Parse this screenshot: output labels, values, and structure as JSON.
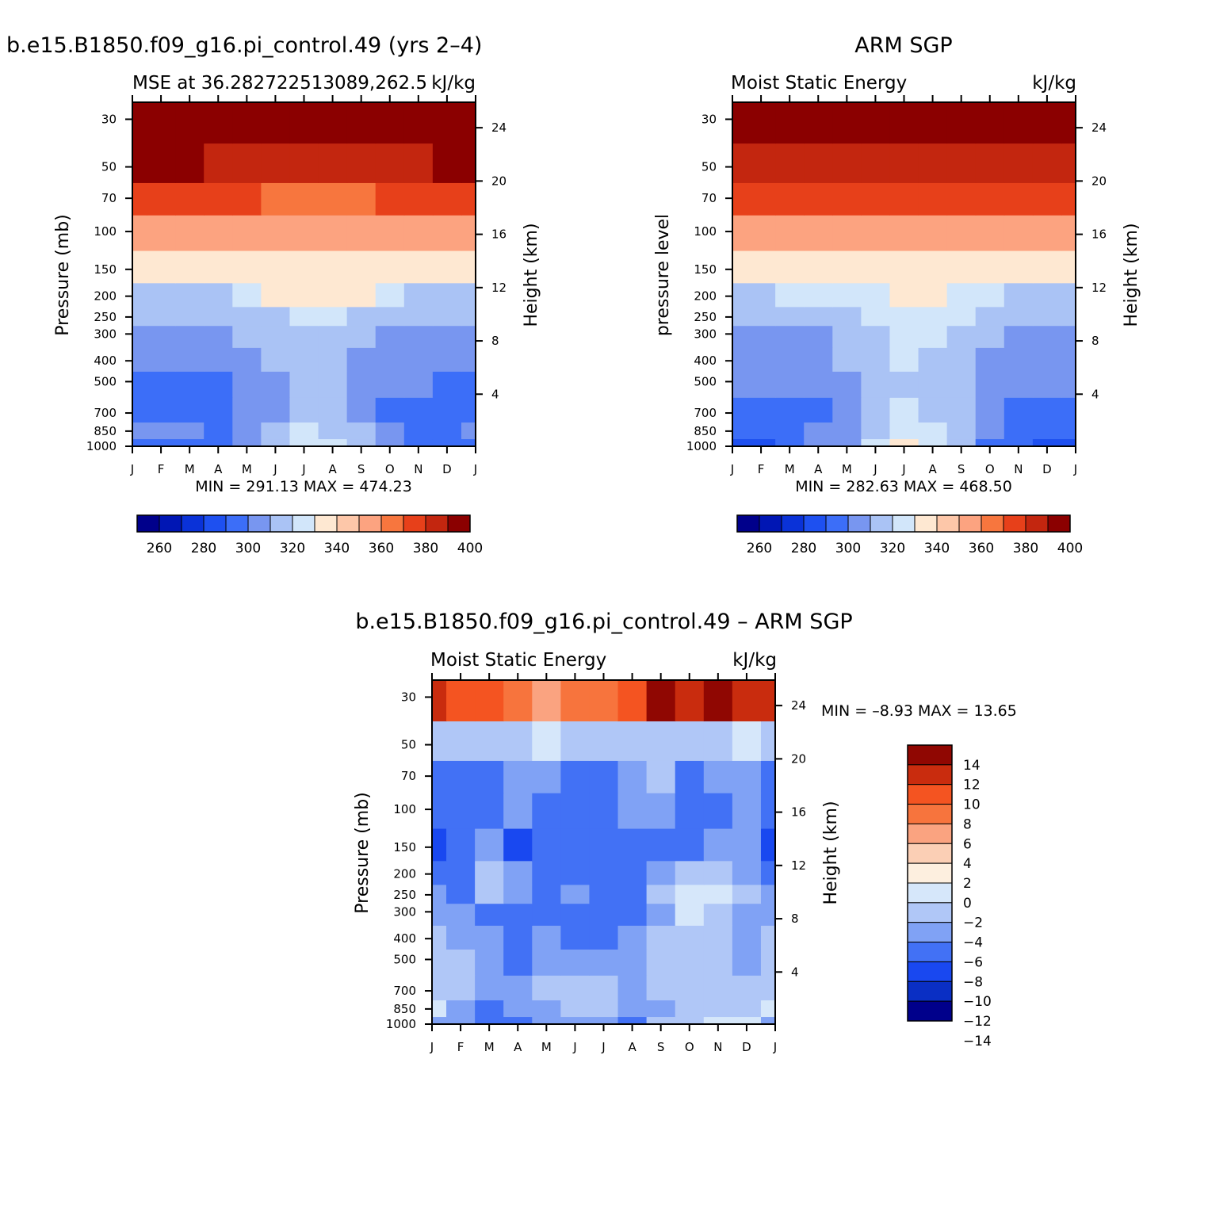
{
  "months": [
    "J",
    "F",
    "M",
    "A",
    "M",
    "J",
    "J",
    "A",
    "S",
    "O",
    "N",
    "D",
    "J"
  ],
  "pressure_ticks": [
    "30",
    "50",
    "70",
    "100",
    "150",
    "200",
    "250",
    "300",
    "400",
    "500",
    "700",
    "850",
    "1000"
  ],
  "height_ticks": [
    "24",
    "20",
    "16",
    "12",
    "8",
    "4"
  ],
  "colors": {
    "mse_scale": [
      "#00008b",
      "#0016b4",
      "#0a32d8",
      "#1e50f0",
      "#3c6ef8",
      "#7896f0",
      "#aac3f5",
      "#d2e6fa",
      "#fee8d2",
      "#fdc7a9",
      "#fca380",
      "#f7763e",
      "#e7401a",
      "#c3260f",
      "#8b0000"
    ],
    "diff_scale": [
      "#00008b",
      "#0a2fc4",
      "#1948f0",
      "#4271f5",
      "#80a2f5",
      "#b0c7f7",
      "#d6e7fa",
      "#fdefdf",
      "#fbcfb5",
      "#faa380",
      "#f7743d",
      "#f45421",
      "#c92c0e",
      "#900702"
    ]
  },
  "panels": {
    "model": {
      "title": "b.e15.B1850.f09_g16.pi_control.49 (yrs 2–4)",
      "left_label": "MSE at 36.282722513089,262.5",
      "right_label": "kJ/kg",
      "ylabel": "Pressure (mb)",
      "y2label": "Height (km)",
      "stats": "MIN = 291.13 MAX = 474.23",
      "colorbar_labels": [
        "260",
        "280",
        "300",
        "320",
        "340",
        "360",
        "380",
        "400"
      ]
    },
    "obs": {
      "title": "ARM SGP",
      "left_label": "Moist Static Energy",
      "right_label": "kJ/kg",
      "ylabel": "pressure level",
      "y2label": "Height (km)",
      "stats": "MIN = 282.63 MAX = 468.50",
      "colorbar_labels": [
        "260",
        "280",
        "300",
        "320",
        "340",
        "360",
        "380",
        "400"
      ]
    },
    "diff": {
      "title": "b.e15.B1850.f09_g16.pi_control.49 – ARM SGP",
      "left_label": "Moist Static Energy",
      "right_label": "kJ/kg",
      "ylabel": "Pressure (mb)",
      "y2label": "Height (km)",
      "stats": "MIN =   –8.93 MAX =   13.65",
      "colorbar_labels": [
        "14",
        "12",
        "10",
        "8",
        "6",
        "4",
        "2",
        "0",
        "−2",
        "−4",
        "−6",
        "−8",
        "−10",
        "−12",
        "−14"
      ]
    }
  },
  "chart_data": [
    {
      "type": "heatmap",
      "title": "b.e15.B1850.f09_g16.pi_control.49 (yrs 2–4)",
      "variable": "MSE at 36.282722513089,262.5",
      "units": "kJ/kg",
      "xlabel": "",
      "ylabel": "Pressure (mb)",
      "y2label": "Height (km)",
      "x": [
        "J",
        "F",
        "M",
        "A",
        "M",
        "J",
        "J",
        "A",
        "S",
        "O",
        "N",
        "D",
        "J"
      ],
      "pressure": [
        1000,
        850,
        700,
        500,
        400,
        300,
        250,
        200,
        150,
        100,
        70,
        50,
        30
      ],
      "levels": [
        260,
        270,
        280,
        290,
        300,
        310,
        320,
        330,
        340,
        350,
        360,
        370,
        380,
        390,
        400
      ],
      "z": [
        [
          307,
          309,
          306,
          302,
          312,
          326,
          333,
          331,
          324,
          312,
          301,
          303,
          307
        ],
        [
          311,
          313,
          310,
          306,
          314,
          323,
          331,
          329,
          321,
          313,
          305,
          307,
          311
        ],
        [
          304,
          305,
          303,
          305,
          311,
          318,
          321,
          320,
          316,
          309,
          303,
          303,
          304
        ],
        [
          308,
          308,
          307,
          309,
          313,
          318,
          320,
          320,
          317,
          313,
          310,
          308,
          308
        ],
        [
          313,
          313,
          313,
          314,
          316,
          320,
          321,
          321,
          319,
          315,
          314,
          313,
          313
        ],
        [
          318,
          318,
          318,
          318,
          320,
          323,
          324,
          324,
          322,
          319,
          318,
          318,
          318
        ],
        [
          322,
          322,
          322,
          322,
          324,
          328,
          331,
          331,
          328,
          322,
          322,
          322,
          322
        ],
        [
          326,
          326,
          326,
          326,
          332,
          340,
          342,
          342,
          340,
          332,
          326,
          326,
          326
        ],
        [
          342,
          342,
          342,
          342,
          344,
          346,
          347,
          347,
          346,
          345,
          344,
          342,
          342
        ],
        [
          362,
          362,
          362,
          362,
          361,
          360,
          360,
          361,
          362,
          364,
          363,
          362,
          362
        ],
        [
          382,
          382,
          382,
          381,
          380,
          379,
          379,
          379,
          378,
          383,
          383,
          383,
          382
        ],
        [
          400,
          400,
          400,
          399,
          398,
          397,
          396,
          396,
          396,
          398,
          399,
          400,
          400
        ],
        [
          474,
          474,
          474,
          474,
          474,
          474,
          474,
          474,
          474,
          474,
          474,
          474,
          474
        ]
      ],
      "min": 291.13,
      "max": 474.23
    },
    {
      "type": "heatmap",
      "title": "ARM SGP",
      "variable": "Moist Static Energy",
      "units": "kJ/kg",
      "xlabel": "",
      "ylabel": "pressure level",
      "y2label": "Height (km)",
      "x": [
        "J",
        "F",
        "M",
        "A",
        "M",
        "J",
        "J",
        "A",
        "S",
        "O",
        "N",
        "D",
        "J"
      ],
      "pressure": [
        1000,
        850,
        700,
        500,
        400,
        300,
        250,
        200,
        150,
        100,
        70,
        50,
        30
      ],
      "levels": [
        260,
        270,
        280,
        290,
        300,
        310,
        320,
        330,
        340,
        350,
        360,
        370,
        380,
        390,
        400
      ],
      "z": [
        [
          298,
          299,
          304,
          310,
          318,
          332,
          342,
          337,
          323,
          309,
          301,
          298,
          298
        ],
        [
          302,
          303,
          306,
          310,
          317,
          328,
          336,
          332,
          322,
          311,
          305,
          302,
          302
        ],
        [
          305,
          306,
          307,
          309,
          315,
          325,
          331,
          328,
          320,
          310,
          306,
          305,
          305
        ],
        [
          310,
          311,
          311,
          312,
          317,
          325,
          328,
          327,
          322,
          314,
          311,
          310,
          310
        ],
        [
          315,
          315,
          316,
          317,
          320,
          327,
          330,
          329,
          325,
          318,
          315,
          315,
          315
        ],
        [
          318,
          318,
          318,
          319,
          323,
          329,
          332,
          331,
          328,
          321,
          318,
          318,
          318
        ],
        [
          322,
          322,
          323,
          324,
          327,
          333,
          336,
          335,
          332,
          325,
          322,
          322,
          322
        ],
        [
          327,
          328,
          330,
          331,
          333,
          337,
          341,
          341,
          337,
          332,
          329,
          327,
          327
        ],
        [
          344,
          344,
          344,
          345,
          346,
          348,
          349,
          349,
          348,
          346,
          345,
          344,
          344
        ],
        [
          364,
          364,
          364,
          363,
          362,
          361,
          361,
          361,
          362,
          363,
          363,
          364,
          364
        ],
        [
          383,
          383,
          383,
          382,
          381,
          380,
          380,
          380,
          380,
          381,
          382,
          382,
          383
        ],
        [
          399,
          399,
          398,
          397,
          396,
          396,
          395,
          395,
          396,
          397,
          398,
          399,
          399
        ],
        [
          468,
          468,
          468,
          468,
          468,
          468,
          468,
          468,
          468,
          468,
          468,
          468,
          468
        ]
      ],
      "min": 282.63,
      "max": 468.5
    },
    {
      "type": "heatmap",
      "title": "b.e15.B1850.f09_g16.pi_control.49 – ARM SGP",
      "variable": "Moist Static Energy",
      "units": "kJ/kg",
      "xlabel": "",
      "ylabel": "Pressure (mb)",
      "y2label": "Height (km)",
      "x": [
        "J",
        "F",
        "M",
        "A",
        "M",
        "J",
        "J",
        "A",
        "S",
        "O",
        "N",
        "D",
        "J"
      ],
      "pressure": [
        1000,
        850,
        700,
        500,
        400,
        300,
        250,
        200,
        150,
        100,
        70,
        50,
        30
      ],
      "levels": [
        -14,
        -12,
        -10,
        -8,
        -6,
        -4,
        -2,
        0,
        2,
        4,
        6,
        8,
        10,
        12,
        14
      ],
      "z": [
        [
          -5,
          -6,
          -7,
          -7,
          -6,
          -5,
          -5,
          -7,
          -4,
          -3,
          -2,
          -2,
          -5
        ],
        [
          -2,
          -5,
          -7,
          -6,
          -5,
          -4,
          -4,
          -6,
          -5,
          -4,
          -3,
          -3,
          -2
        ],
        [
          -3,
          -4,
          -5,
          -6,
          -4,
          -3,
          -4,
          -5,
          -4,
          -3,
          -4,
          -4,
          -3
        ],
        [
          -4,
          -4,
          -6,
          -7,
          -5,
          -5,
          -5,
          -6,
          -4,
          -3,
          -4,
          -5,
          -4
        ],
        [
          -4,
          -5,
          -6,
          -8,
          -6,
          -7,
          -7,
          -6,
          -3,
          -3,
          -4,
          -5,
          -4
        ],
        [
          -5,
          -6,
          -7,
          -7,
          -7,
          -7,
          -8,
          -8,
          -5,
          -2,
          -3,
          -5,
          -5
        ],
        [
          -6,
          -7,
          -3,
          -6,
          -7,
          -6,
          -8,
          -7,
          -4,
          -2,
          -2,
          -3,
          -6
        ],
        [
          -8,
          -7,
          -3,
          -6,
          -8,
          -7,
          -7,
          -8,
          -6,
          -3,
          -4,
          -5,
          -8
        ],
        [
          -9,
          -8,
          -6,
          -9,
          -8,
          -8,
          -7,
          -8,
          -7,
          -7,
          -5,
          -6,
          -9
        ],
        [
          -8,
          -8,
          -7,
          -6,
          -8,
          -8,
          -7,
          -6,
          -5,
          -8,
          -7,
          -6,
          -8
        ],
        [
          -7,
          -7,
          -7,
          -5,
          -6,
          -7,
          -7,
          -6,
          -4,
          -7,
          -6,
          -6,
          -7
        ],
        [
          -3,
          -3,
          -3,
          -3,
          -2,
          -3,
          -3,
          -4,
          -4,
          -3,
          -3,
          -2,
          -3
        ],
        [
          11,
          9,
          8,
          6,
          5,
          6,
          7,
          9,
          12,
          10,
          12,
          11,
          11
        ]
      ],
      "min": -8.93,
      "max": 13.65
    }
  ]
}
